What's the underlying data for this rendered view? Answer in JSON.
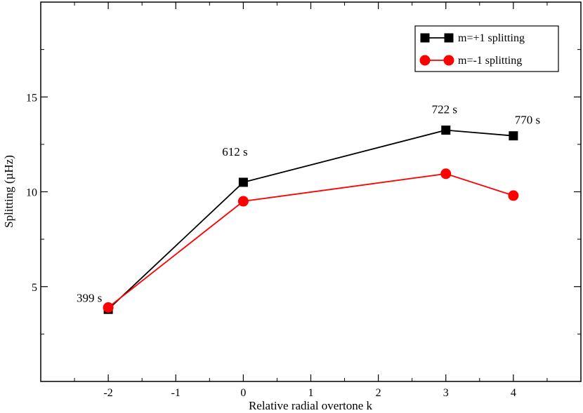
{
  "chart_data": {
    "type": "line",
    "xlabel": "Relative radial overtone k",
    "ylabel": "Splitting (µHz)",
    "xlim": [
      -3,
      5
    ],
    "ylim": [
      0,
      20
    ],
    "x_ticks": [
      -2,
      -1,
      0,
      1,
      2,
      3,
      4
    ],
    "y_ticks": [
      5,
      10,
      15
    ],
    "grid": false,
    "legend_position": "top-right",
    "series": [
      {
        "name": "m=+1 splitting",
        "color": "#000000",
        "marker": "square",
        "x": [
          -2,
          0,
          3,
          4
        ],
        "y": [
          3.8,
          10.5,
          13.25,
          12.95
        ]
      },
      {
        "name": "m=-1 splitting",
        "color": "#ff0000",
        "marker": "circle",
        "x": [
          -2,
          0,
          3,
          4
        ],
        "y": [
          3.9,
          9.5,
          10.95,
          9.8
        ]
      }
    ],
    "annotations": [
      {
        "text": "399 s",
        "x": -2
      },
      {
        "text": "612 s",
        "x": 0
      },
      {
        "text": "722 s",
        "x": 3
      },
      {
        "text": "770 s",
        "x": 4
      }
    ]
  }
}
